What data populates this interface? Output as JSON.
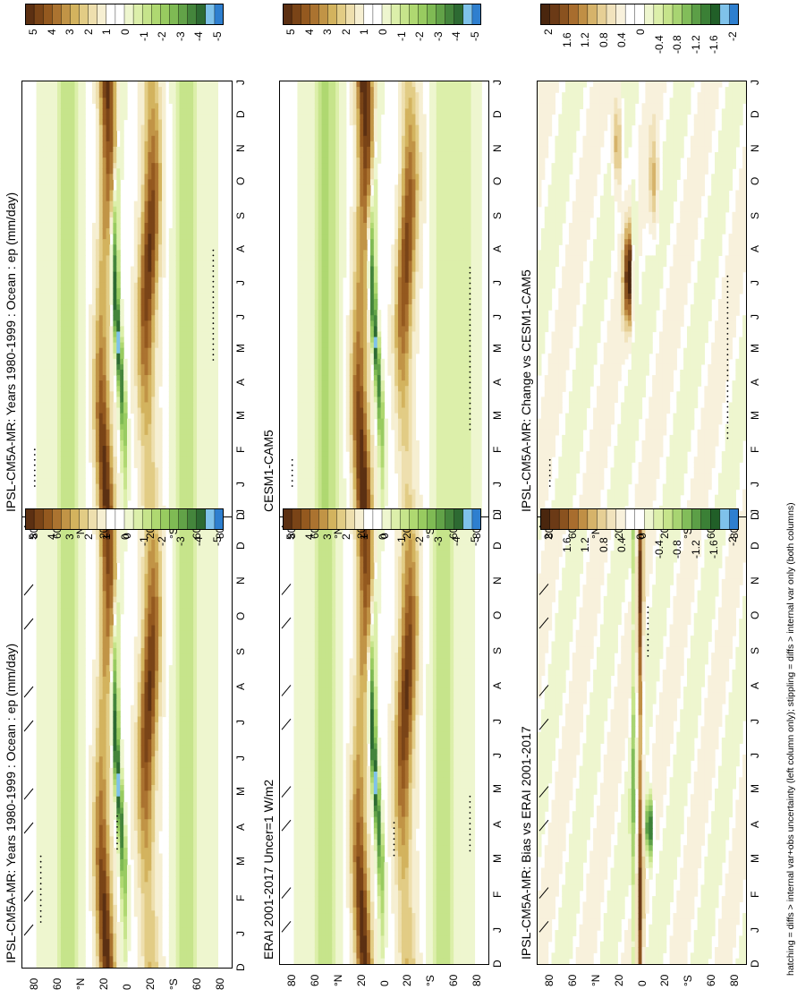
{
  "footnote": "hatching = diffs > internal var+obs uncertainty (left column only); stippling = diffs > internal var only (both columns)",
  "lat_axis": {
    "ticks": [
      "80",
      "60",
      "°N",
      "20",
      "0",
      "20",
      "°S",
      "60",
      "80"
    ],
    "range": [
      80,
      -80
    ]
  },
  "month_axis": {
    "ticks": [
      "D",
      "J",
      "F",
      "M",
      "A",
      "M",
      "J",
      "J",
      "A",
      "S",
      "O",
      "N",
      "D",
      "J"
    ]
  },
  "colorbars": {
    "field": {
      "labels": [
        "5",
        "4",
        "3",
        "2",
        "1",
        "0",
        "-1",
        "-2",
        "-3",
        "-4",
        "-5"
      ],
      "colors": [
        "#5c3012",
        "#7a4417",
        "#94591f",
        "#ab7330",
        "#c19446",
        "#d3b35e",
        "#e2cc85",
        "#eedfae",
        "#f6efd2",
        "#ffffff",
        "#ffffff",
        "#eef6cf",
        "#dcefaa",
        "#c6e48b",
        "#afd871",
        "#98cb60",
        "#7fba54",
        "#62a248",
        "#44853c",
        "#2d6a32",
        "#7fc2ea",
        "#2e7fcf"
      ]
    },
    "diff": {
      "labels": [
        "2",
        "1.6",
        "1.2",
        "0.8",
        "0.4",
        "0",
        "-0.4",
        "-0.8",
        "-1.2",
        "-1.6",
        "-2"
      ],
      "colors": [
        "#4a260e",
        "#6b3a16",
        "#8a521f",
        "#a86d2e",
        "#c08f45",
        "#d6b36a",
        "#e6cf95",
        "#f1e3bd",
        "#f8f1dc",
        "#ffffff",
        "#ffffff",
        "#eef6cf",
        "#dcefaa",
        "#c6e48b",
        "#a8d472",
        "#82bd5a",
        "#5c9f47",
        "#3b8036",
        "#215f28",
        "#7fc2ea",
        "#2e7fcf"
      ]
    }
  },
  "panels": {
    "p1": {
      "title": "IPSL-CM5A-MR: Years 1980-1999 : Ocean : ep (mm/day)"
    },
    "p2": {
      "title": "IPSL-CM5A-MR: Years 1980-1999 : Ocean : ep (mm/day)"
    },
    "p3": {
      "title": "ERAI 2001-2017 Uncer=1 W/m2"
    },
    "p4": {
      "title": "CESM1-CAM5"
    },
    "p5": {
      "title": "IPSL-CM5A-MR: Bias vs ERAI 2001-2017"
    },
    "p6": {
      "title": "IPSL-CM5A-MR: Change vs CESM1-CAM5"
    }
  },
  "chart_data": [
    {
      "id": "p1",
      "type": "heatmap",
      "title": "IPSL-CM5A-MR: Years 1980-1999 : Ocean : ep (mm/day)",
      "x_ticks": [
        "D",
        "J",
        "F",
        "M",
        "A",
        "M",
        "J",
        "J",
        "A",
        "S",
        "O",
        "N",
        "D",
        "J"
      ],
      "y_ticks": [
        "80",
        "60",
        "°N",
        "20",
        "0",
        "20",
        "°S",
        "60",
        "80"
      ],
      "colorbar": "field",
      "hatching": true,
      "stippling": true
    },
    {
      "id": "p2",
      "type": "heatmap",
      "title": "IPSL-CM5A-MR: Years 1980-1999 : Ocean : ep (mm/day)",
      "x_ticks": [
        "D",
        "J",
        "F",
        "M",
        "A",
        "M",
        "J",
        "J",
        "A",
        "S",
        "O",
        "N",
        "D",
        "J"
      ],
      "y_ticks": [
        "80",
        "60",
        "°N",
        "20",
        "0",
        "20",
        "°S",
        "60",
        "80"
      ],
      "colorbar": "field",
      "hatching": false,
      "stippling": true
    },
    {
      "id": "p3",
      "type": "heatmap",
      "title": "ERAI 2001-2017 Uncer=1 W/m2",
      "x_ticks": [
        "D",
        "J",
        "F",
        "M",
        "A",
        "M",
        "J",
        "J",
        "A",
        "S",
        "O",
        "N",
        "D",
        "J"
      ],
      "y_ticks": [
        "80",
        "60",
        "°N",
        "20",
        "0",
        "20",
        "°S",
        "60",
        "80"
      ],
      "colorbar": "field",
      "hatching": true,
      "stippling": true
    },
    {
      "id": "p4",
      "type": "heatmap",
      "title": "CESM1-CAM5",
      "x_ticks": [
        "D",
        "J",
        "F",
        "M",
        "A",
        "M",
        "J",
        "J",
        "A",
        "S",
        "O",
        "N",
        "D",
        "J"
      ],
      "y_ticks": [
        "80",
        "60",
        "°N",
        "20",
        "0",
        "20",
        "°S",
        "60",
        "80"
      ],
      "colorbar": "field",
      "hatching": false,
      "stippling": true
    },
    {
      "id": "p5",
      "type": "heatmap",
      "title": "IPSL-CM5A-MR: Bias vs ERAI 2001-2017",
      "x_ticks": [
        "D",
        "J",
        "F",
        "M",
        "A",
        "M",
        "J",
        "J",
        "A",
        "S",
        "O",
        "N",
        "D",
        "J"
      ],
      "y_ticks": [
        "80",
        "60",
        "°N",
        "20",
        "0",
        "20",
        "°S",
        "60",
        "80"
      ],
      "colorbar": "diff",
      "hatching": true,
      "stippling": true
    },
    {
      "id": "p6",
      "type": "heatmap",
      "title": "IPSL-CM5A-MR: Change vs CESM1-CAM5",
      "x_ticks": [
        "D",
        "J",
        "F",
        "M",
        "A",
        "M",
        "J",
        "J",
        "A",
        "S",
        "O",
        "N",
        "D",
        "J"
      ],
      "y_ticks": [
        "80",
        "60",
        "°N",
        "20",
        "0",
        "20",
        "°S",
        "60",
        "80"
      ],
      "colorbar": "diff",
      "hatching": false,
      "stippling": true
    }
  ]
}
